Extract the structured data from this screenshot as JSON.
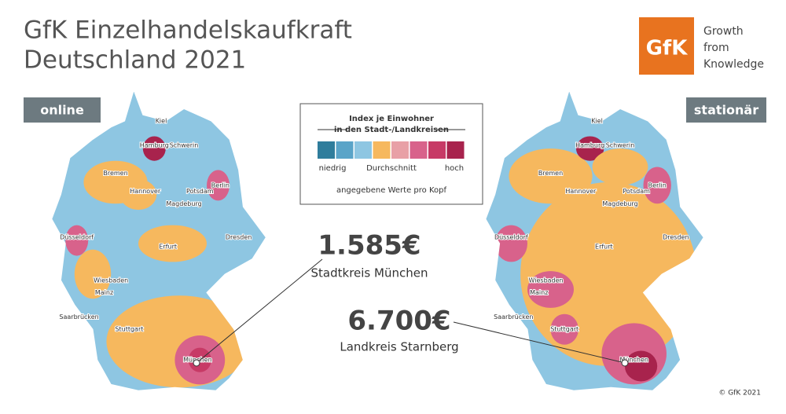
{
  "header": {
    "title_lines": [
      "GfK Einzelhandelskaufkraft",
      "Deutschland 2021"
    ],
    "logo": {
      "mark": "GfK",
      "tagline": [
        "Growth",
        "from",
        "Knowledge"
      ]
    }
  },
  "maps": [
    {
      "label": "online"
    },
    {
      "label": "stationär"
    }
  ],
  "legend": {
    "title_lines": [
      "Index je Einwohner",
      "in den Stadt-/Landkreisen"
    ],
    "colors": [
      "#2f7d9c",
      "#5aa4c8",
      "#8ec6e2",
      "#f6b85e",
      "#e8a0a6",
      "#d8628b",
      "#c73a66",
      "#a8234d"
    ],
    "labels": [
      "niedrig",
      "Durchschnitt",
      "hoch"
    ],
    "note": "angegebene Werte pro Kopf"
  },
  "callouts": [
    {
      "value": "1.585€",
      "place": "Stadtkreis München"
    },
    {
      "value": "6.700€",
      "place": "Landkreis Starnberg"
    }
  ],
  "cities": [
    "Kiel",
    "Hamburg",
    "Schwerin",
    "Bremen",
    "Hannover",
    "Potsdam",
    "Berlin",
    "Magdeburg",
    "Düsseldorf",
    "Dresden",
    "Erfurt",
    "Wiesbaden",
    "Mainz",
    "Saarbrücken",
    "Stuttgart",
    "München"
  ],
  "copyright": "© GfK 2021"
}
